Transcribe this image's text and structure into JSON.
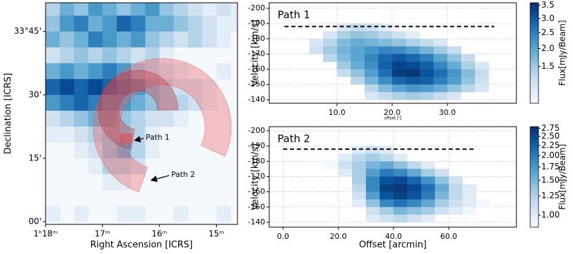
{
  "chart_data": [
    {
      "type": "heatmap",
      "xlabel": "Right Ascension [ICRS]",
      "ylabel": "Declination [ICRS]",
      "xlim": [
        78,
        74.63
      ],
      "ylim": [
        -0.65,
        51.8
      ],
      "xticks": [
        {
          "value": 78,
          "label": "1ʰ18ᵐ"
        },
        {
          "value": 77,
          "label": "17ᵐ"
        },
        {
          "value": 76,
          "label": "16ᵐ"
        },
        {
          "value": 75,
          "label": "15ᵐ"
        }
      ],
      "yticks": [
        {
          "value": 45,
          "label": "33°45'"
        },
        {
          "value": 30,
          "label": "30'"
        },
        {
          "value": 15,
          "label": "15'"
        },
        {
          "value": 0,
          "label": "00'"
        }
      ],
      "zlim": [
        0,
        1
      ],
      "x": [
        77.875,
        77.625,
        77.375,
        77.125,
        76.875,
        76.625,
        76.375,
        76.125,
        75.875,
        75.625,
        75.375,
        75.125,
        74.875,
        74.625
      ],
      "y": [
        50.625,
        46.875,
        43.125,
        39.375,
        35.625,
        31.875,
        28.125,
        24.375,
        20.625,
        16.875,
        13.125,
        9.375,
        5.625,
        1.875
      ],
      "z": [
        [
          0.3,
          0.5,
          0.4,
          0.6,
          0.5,
          0.4,
          0.5,
          0.6,
          0.4,
          0.3,
          0.2,
          0.1,
          0.2,
          0.1
        ],
        [
          0.4,
          0.6,
          0.7,
          0.5,
          0.6,
          0.8,
          0.7,
          0.5,
          0.5,
          0.4,
          0.3,
          0.2,
          0.1,
          0.1
        ],
        [
          0.5,
          0.4,
          0.5,
          0.7,
          0.6,
          0.5,
          0.6,
          0.4,
          0.3,
          0.2,
          0.3,
          0.2,
          0.1,
          null
        ],
        [
          0.2,
          0.3,
          0.4,
          0.3,
          0.4,
          0.3,
          0.2,
          0.3,
          0.1,
          null,
          null,
          null,
          null,
          null
        ],
        [
          0.5,
          0.6,
          0.5,
          0.6,
          0.7,
          0.6,
          0.4,
          0.3,
          0.2,
          0.1,
          null,
          null,
          0.1,
          null
        ],
        [
          0.8,
          0.9,
          0.8,
          0.9,
          0.8,
          0.7,
          0.6,
          0.4,
          0.3,
          0.2,
          0.2,
          0.1,
          null,
          null
        ],
        [
          0.6,
          0.7,
          0.8,
          0.7,
          0.6,
          0.6,
          0.5,
          0.4,
          0.3,
          0.3,
          0.2,
          0.1,
          null,
          null
        ],
        [
          0.2,
          0.3,
          0.4,
          0.5,
          0.5,
          0.4,
          0.3,
          0.2,
          0.2,
          0.1,
          null,
          null,
          null,
          null
        ],
        [
          0.1,
          0.1,
          0.2,
          0.3,
          0.4,
          0.4,
          0.3,
          0.1,
          null,
          null,
          null,
          null,
          null,
          null
        ],
        [
          null,
          null,
          0.1,
          0.2,
          0.4,
          0.5,
          0.3,
          0.1,
          null,
          null,
          null,
          null,
          null,
          null
        ],
        [
          null,
          null,
          null,
          0.1,
          0.3,
          0.3,
          0.2,
          null,
          null,
          null,
          null,
          null,
          null,
          null
        ],
        [
          null,
          null,
          null,
          null,
          0.1,
          0.1,
          null,
          null,
          null,
          null,
          null,
          null,
          null,
          null
        ],
        [
          null,
          null,
          null,
          null,
          null,
          null,
          null,
          null,
          null,
          null,
          null,
          null,
          null,
          null
        ],
        [
          0.1,
          null,
          0.1,
          null,
          null,
          0.1,
          0.1,
          null,
          null,
          0.1,
          null,
          null,
          0.1,
          null
        ]
      ],
      "annotations": [
        {
          "text": "Path 1"
        },
        {
          "text": "Path 2"
        }
      ]
    },
    {
      "type": "heatmap",
      "title": "Path 1",
      "xlabel": "offset [']",
      "ylabel": "Velocity [km/s]",
      "xlim": [
        -2.25,
        42.5
      ],
      "ylim": [
        -137.7,
        -203.6
      ],
      "xticks": [
        {
          "value": 10,
          "label": "10.0"
        },
        {
          "value": 20,
          "label": "20.0"
        },
        {
          "value": 30,
          "label": "30.0"
        }
      ],
      "yticks": [
        -200,
        -190,
        -180,
        -170,
        -160,
        -150,
        -140
      ],
      "grid": true,
      "reference_line": {
        "y": -188,
        "x": [
          0.5,
          38.5
        ]
      },
      "x": [
        1.25,
        3.75,
        6.25,
        8.75,
        11.25,
        13.75,
        16.25,
        18.75,
        21.25,
        23.75,
        26.25,
        28.75,
        31.25,
        33.75,
        36.25,
        38.75
      ],
      "y": [
        -187.5,
        -182.5,
        -177.5,
        -172.5,
        -167.5,
        -162.5,
        -157.5,
        -152.5,
        -147.5,
        -142.5
      ],
      "z": [
        [
          null,
          null,
          null,
          null,
          1.0,
          1.2,
          1.1,
          0.9,
          null,
          null,
          null,
          null,
          null,
          null,
          null,
          null
        ],
        [
          null,
          null,
          null,
          1.0,
          1.4,
          1.6,
          1.5,
          1.3,
          1.1,
          0.9,
          null,
          null,
          null,
          null,
          null,
          null
        ],
        [
          null,
          null,
          1.0,
          1.3,
          1.7,
          1.9,
          1.8,
          1.7,
          1.6,
          1.4,
          1.2,
          1.0,
          null,
          null,
          null,
          null
        ],
        [
          null,
          null,
          1.1,
          1.5,
          1.8,
          2.0,
          2.2,
          2.4,
          2.3,
          2.1,
          1.8,
          1.5,
          1.2,
          null,
          null,
          null
        ],
        [
          null,
          null,
          null,
          1.3,
          1.7,
          2.0,
          2.4,
          2.8,
          3.0,
          2.8,
          2.5,
          2.0,
          1.6,
          1.2,
          null,
          null
        ],
        [
          null,
          null,
          null,
          null,
          1.5,
          1.9,
          2.3,
          2.9,
          3.3,
          3.2,
          2.9,
          2.4,
          1.9,
          1.4,
          1.0,
          null
        ],
        [
          null,
          null,
          null,
          null,
          1.2,
          1.6,
          2.1,
          2.7,
          3.4,
          3.5,
          3.1,
          2.7,
          2.2,
          1.7,
          1.2,
          null
        ],
        [
          null,
          null,
          null,
          null,
          null,
          1.3,
          1.8,
          2.3,
          2.8,
          3.0,
          2.9,
          2.5,
          2.1,
          1.6,
          1.1,
          null
        ],
        [
          null,
          null,
          null,
          null,
          null,
          null,
          1.3,
          1.7,
          2.0,
          2.2,
          2.1,
          1.9,
          1.6,
          1.3,
          1.0,
          null
        ],
        [
          null,
          null,
          null,
          null,
          null,
          null,
          1.0,
          1.2,
          1.4,
          1.5,
          1.4,
          1.2,
          1.0,
          null,
          null,
          null
        ]
      ],
      "colorbar": {
        "label": "Flux[mJy/Beam]",
        "scale": "sqrt",
        "lim": [
          0.7,
          3.6
        ],
        "ticks": [
          {
            "value": 3.5,
            "label": "3.5"
          },
          {
            "value": 3,
            "label": "3.0"
          },
          {
            "value": 2.5,
            "label": "2.5"
          },
          {
            "value": 2,
            "label": "2.0"
          },
          {
            "value": 1.5,
            "label": "1.5"
          }
        ]
      }
    },
    {
      "type": "heatmap",
      "title": "Path 2",
      "xlabel": "Offset [arcmin]",
      "ylabel": "Velocity [km/s]",
      "xlim": [
        -5,
        84.5
      ],
      "ylim": [
        -136.8,
        -202.7
      ],
      "xticks": [
        {
          "value": 0,
          "label": "0.0"
        },
        {
          "value": 20,
          "label": "20.0"
        },
        {
          "value": 40,
          "label": "40.0"
        },
        {
          "value": 60,
          "label": "60.0"
        }
      ],
      "yticks": [
        -200,
        -190,
        -180,
        -170,
        -160,
        -150,
        -140
      ],
      "grid": true,
      "reference_line": {
        "y": -188,
        "x": [
          0,
          70
        ]
      },
      "x": [
        2.5,
        7.5,
        12.5,
        17.5,
        22.5,
        27.5,
        32.5,
        37.5,
        42.5,
        47.5,
        52.5,
        57.5,
        62.5,
        67.5,
        72.5,
        77.5
      ],
      "y": [
        -187.5,
        -182.5,
        -177.5,
        -172.5,
        -167.5,
        -162.5,
        -157.5,
        -152.5,
        -147.5,
        -142.5
      ],
      "z": [
        [
          null,
          null,
          null,
          null,
          null,
          1.0,
          1.1,
          1.0,
          null,
          null,
          null,
          null,
          null,
          null,
          null,
          null
        ],
        [
          null,
          null,
          null,
          null,
          1.0,
          1.2,
          1.3,
          1.2,
          1.0,
          null,
          null,
          null,
          null,
          null,
          null,
          null
        ],
        [
          null,
          null,
          null,
          0.9,
          1.1,
          1.3,
          1.5,
          1.6,
          1.4,
          1.2,
          1.0,
          null,
          null,
          null,
          null,
          null
        ],
        [
          null,
          null,
          null,
          null,
          1.0,
          1.3,
          1.7,
          2.0,
          1.9,
          1.6,
          1.3,
          1.1,
          null,
          null,
          null,
          null
        ],
        [
          null,
          null,
          null,
          null,
          null,
          1.3,
          1.9,
          2.4,
          2.5,
          2.2,
          1.8,
          1.4,
          1.1,
          null,
          null,
          null
        ],
        [
          null,
          null,
          null,
          null,
          null,
          1.2,
          1.9,
          2.6,
          2.7,
          2.5,
          2.1,
          1.6,
          1.2,
          1.0,
          null,
          null
        ],
        [
          null,
          null,
          null,
          null,
          null,
          1.1,
          1.7,
          2.4,
          2.6,
          2.4,
          2.0,
          1.5,
          1.2,
          1.0,
          null,
          null
        ],
        [
          null,
          null,
          null,
          null,
          null,
          1.0,
          1.4,
          1.9,
          2.1,
          1.9,
          1.6,
          1.3,
          1.1,
          1.0,
          0.9,
          null
        ],
        [
          null,
          null,
          null,
          null,
          null,
          null,
          1.1,
          1.3,
          1.5,
          1.4,
          1.3,
          1.1,
          1.0,
          0.9,
          null,
          null
        ],
        [
          null,
          null,
          null,
          null,
          null,
          null,
          1.0,
          1.1,
          1.2,
          1.1,
          1.0,
          null,
          null,
          null,
          null,
          null
        ]
      ],
      "colorbar": {
        "label": "Flux[mJy/Beam]",
        "scale": "log",
        "lim": [
          0.87,
          2.8
        ],
        "ticks": [
          {
            "value": 2.75,
            "label": "2.75"
          },
          {
            "value": 2.5,
            "label": "2.50"
          },
          {
            "value": 2.25,
            "label": "2.25"
          },
          {
            "value": 2,
            "label": "2.00"
          },
          {
            "value": 1.75,
            "label": "1.75"
          },
          {
            "value": 1.5,
            "label": "1.50"
          },
          {
            "value": 1.25,
            "label": "1.25"
          },
          {
            "value": 1,
            "label": "1.00"
          }
        ]
      }
    }
  ]
}
